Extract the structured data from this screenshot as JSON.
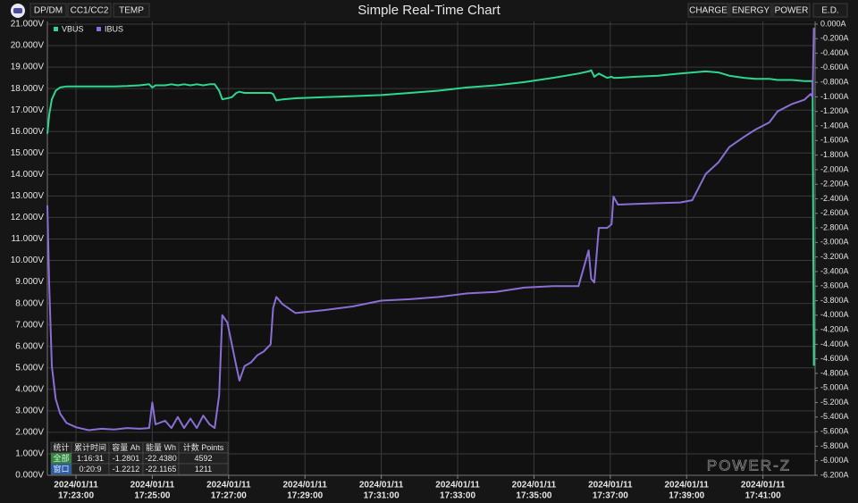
{
  "toolbar": {
    "left": [
      "DP/DM",
      "CC1/CC2",
      "TEMP"
    ],
    "right": [
      "CHARGE",
      "ENERGY",
      "POWER",
      "E.D."
    ]
  },
  "logo": "POWER-Z",
  "stats_table": {
    "header": [
      "统计",
      "累计时间",
      "容量 Ah",
      "能量 Wh",
      "计数 Points"
    ],
    "rows": [
      [
        "全部",
        "1:16:31",
        "-1.2801",
        "-22.4380",
        "4592"
      ],
      [
        "窗口",
        "0:20:9",
        "-1.2212",
        "-22.1165",
        "1211"
      ]
    ]
  },
  "chart_data": {
    "type": "line",
    "title": "Simple Real-Time Chart",
    "grid": true,
    "legend": "top-left",
    "x": [
      "2024/01/11 17:22:15",
      "2024/01/11 17:22:18",
      "2024/01/11 17:22:22",
      "2024/01/11 17:22:28",
      "2024/01/11 17:22:35",
      "2024/01/11 17:22:45",
      "2024/01/11 17:23:00",
      "2024/01/11 17:23:20",
      "2024/01/11 17:23:40",
      "2024/01/11 17:24:00",
      "2024/01/11 17:24:20",
      "2024/01/11 17:24:40",
      "2024/01/11 17:24:55",
      "2024/01/11 17:25:00",
      "2024/01/11 17:25:05",
      "2024/01/11 17:25:20",
      "2024/01/11 17:25:30",
      "2024/01/11 17:25:40",
      "2024/01/11 17:25:50",
      "2024/01/11 17:26:00",
      "2024/01/11 17:26:10",
      "2024/01/11 17:26:20",
      "2024/01/11 17:26:30",
      "2024/01/11 17:26:38",
      "2024/01/11 17:26:45",
      "2024/01/11 17:26:50",
      "2024/01/11 17:26:58",
      "2024/01/11 17:27:05",
      "2024/01/11 17:27:12",
      "2024/01/11 17:27:17",
      "2024/01/11 17:27:25",
      "2024/01/11 17:27:35",
      "2024/01/11 17:27:45",
      "2024/01/11 17:27:55",
      "2024/01/11 17:28:06",
      "2024/01/11 17:28:10",
      "2024/01/11 17:28:15",
      "2024/01/11 17:28:25",
      "2024/01/11 17:28:45",
      "2024/01/11 17:29:30",
      "2024/01/11 17:30:15",
      "2024/01/11 17:31:00",
      "2024/01/11 17:31:45",
      "2024/01/11 17:32:30",
      "2024/01/11 17:33:15",
      "2024/01/11 17:34:00",
      "2024/01/11 17:34:45",
      "2024/01/11 17:35:30",
      "2024/01/11 17:36:10",
      "2024/01/11 17:36:26",
      "2024/01/11 17:36:30",
      "2024/01/11 17:36:35",
      "2024/01/11 17:36:42",
      "2024/01/11 17:36:55",
      "2024/01/11 17:37:02",
      "2024/01/11 17:37:05",
      "2024/01/11 17:37:12",
      "2024/01/11 17:37:40",
      "2024/01/11 17:38:15",
      "2024/01/11 17:38:50",
      "2024/01/11 17:39:09",
      "2024/01/11 17:39:30",
      "2024/01/11 17:39:50",
      "2024/01/11 17:40:07",
      "2024/01/11 17:40:30",
      "2024/01/11 17:40:48",
      "2024/01/11 17:41:10",
      "2024/01/11 17:41:23",
      "2024/01/11 17:41:45",
      "2024/01/11 17:42:05",
      "2024/01/11 17:42:15",
      "2024/01/11 17:42:18",
      "2024/01/11 17:42:20"
    ],
    "series": [
      {
        "name": "VBUS",
        "color": "#2ed68f",
        "values": [
          15.9,
          16.8,
          17.5,
          17.9,
          18.05,
          18.1,
          18.1,
          18.1,
          18.1,
          18.1,
          18.12,
          18.15,
          18.2,
          18.05,
          18.15,
          18.15,
          18.2,
          18.15,
          18.2,
          18.15,
          18.2,
          18.15,
          18.2,
          18.2,
          17.9,
          17.5,
          17.55,
          17.6,
          17.8,
          17.85,
          17.8,
          17.8,
          17.8,
          17.8,
          17.8,
          17.75,
          17.45,
          17.5,
          17.55,
          17.6,
          17.65,
          17.7,
          17.8,
          17.9,
          18.05,
          18.15,
          18.3,
          18.5,
          18.7,
          18.8,
          18.85,
          18.55,
          18.7,
          18.5,
          18.55,
          18.5,
          18.5,
          18.55,
          18.6,
          18.7,
          18.75,
          18.8,
          18.75,
          18.6,
          18.5,
          18.45,
          18.45,
          18.4,
          18.4,
          18.35,
          18.35,
          18.35,
          5.1
        ]
      },
      {
        "name": "IBUS",
        "color": "#8a6fd6",
        "axis": "y2",
        "values": [
          -2.49,
          -3.6,
          -4.7,
          -5.15,
          -5.35,
          -5.48,
          -5.54,
          -5.58,
          -5.56,
          -5.57,
          -5.55,
          -5.56,
          -5.55,
          -5.2,
          -5.5,
          -5.45,
          -5.55,
          -5.4,
          -5.55,
          -5.42,
          -5.55,
          -5.38,
          -5.5,
          -5.55,
          -5.1,
          -4.0,
          -4.1,
          -4.4,
          -4.7,
          -4.9,
          -4.7,
          -4.65,
          -4.55,
          -4.5,
          -4.4,
          -3.9,
          -3.75,
          -3.85,
          -3.97,
          -3.93,
          -3.88,
          -3.8,
          -3.78,
          -3.75,
          -3.7,
          -3.68,
          -3.62,
          -3.6,
          -3.6,
          -3.11,
          -3.5,
          -3.55,
          -2.8,
          -2.8,
          -2.75,
          -2.37,
          -2.48,
          -2.47,
          -2.46,
          -2.45,
          -2.42,
          -2.06,
          -1.9,
          -1.69,
          -1.55,
          -1.45,
          -1.35,
          -1.2,
          -1.1,
          -1.04,
          -0.96,
          -1.0,
          -0.05
        ]
      }
    ],
    "xlim": [
      "2024/01/11 17:22:15",
      "2024/01/11 17:42:22"
    ],
    "xticks": [
      {
        "value": "2024/01/11 17:23:00",
        "label": [
          "2024/01/11",
          "17:23:00"
        ]
      },
      {
        "value": "2024/01/11 17:25:00",
        "label": [
          "2024/01/11",
          "17:25:00"
        ]
      },
      {
        "value": "2024/01/11 17:27:00",
        "label": [
          "2024/01/11",
          "17:27:00"
        ]
      },
      {
        "value": "2024/01/11 17:29:00",
        "label": [
          "2024/01/11",
          "17:29:00"
        ]
      },
      {
        "value": "2024/01/11 17:31:00",
        "label": [
          "2024/01/11",
          "17:31:00"
        ]
      },
      {
        "value": "2024/01/11 17:33:00",
        "label": [
          "2024/01/11",
          "17:33:00"
        ]
      },
      {
        "value": "2024/01/11 17:35:00",
        "label": [
          "2024/01/11",
          "17:35:00"
        ]
      },
      {
        "value": "2024/01/11 17:37:00",
        "label": [
          "2024/01/11",
          "17:37:00"
        ]
      },
      {
        "value": "2024/01/11 17:39:00",
        "label": [
          "2024/01/11",
          "17:39:00"
        ]
      },
      {
        "value": "2024/01/11 17:41:00",
        "label": [
          "2024/01/11",
          "17:41:00"
        ]
      }
    ],
    "ylim": [
      0,
      21
    ],
    "yticks": [
      {
        "value": 0,
        "label": "0.000V"
      },
      {
        "value": 1,
        "label": "1.000V"
      },
      {
        "value": 2,
        "label": "2.000V"
      },
      {
        "value": 3,
        "label": "3.000V"
      },
      {
        "value": 4,
        "label": "4.000V"
      },
      {
        "value": 5,
        "label": "5.000V"
      },
      {
        "value": 6,
        "label": "6.000V"
      },
      {
        "value": 7,
        "label": "7.000V"
      },
      {
        "value": 8,
        "label": "8.000V"
      },
      {
        "value": 9,
        "label": "9.000V"
      },
      {
        "value": 10,
        "label": "10.000V"
      },
      {
        "value": 11,
        "label": "11.000V"
      },
      {
        "value": 12,
        "label": "12.000V"
      },
      {
        "value": 13,
        "label": "13.000V"
      },
      {
        "value": 14,
        "label": "14.000V"
      },
      {
        "value": 15,
        "label": "15.000V"
      },
      {
        "value": 16,
        "label": "16.000V"
      },
      {
        "value": 17,
        "label": "17.000V"
      },
      {
        "value": 18,
        "label": "18.000V"
      },
      {
        "value": 19,
        "label": "19.000V"
      },
      {
        "value": 20,
        "label": "20.000V"
      },
      {
        "value": 21,
        "label": "21.000V"
      }
    ],
    "y2lim": [
      -6.2,
      0
    ],
    "y2ticks": [
      {
        "value": 0,
        "label": "0.000A"
      },
      {
        "value": -0.2,
        "label": "-0.200A"
      },
      {
        "value": -0.4,
        "label": "-0.400A"
      },
      {
        "value": -0.6,
        "label": "-0.600A"
      },
      {
        "value": -0.8,
        "label": "-0.800A"
      },
      {
        "value": -1.0,
        "label": "-1.000A"
      },
      {
        "value": -1.2,
        "label": "-1.200A"
      },
      {
        "value": -1.4,
        "label": "-1.400A"
      },
      {
        "value": -1.6,
        "label": "-1.600A"
      },
      {
        "value": -1.8,
        "label": "-1.800A"
      },
      {
        "value": -2.0,
        "label": "-2.000A"
      },
      {
        "value": -2.2,
        "label": "-2.200A"
      },
      {
        "value": -2.4,
        "label": "-2.400A"
      },
      {
        "value": -2.6,
        "label": "-2.600A"
      },
      {
        "value": -2.8,
        "label": "-2.800A"
      },
      {
        "value": -3.0,
        "label": "-3.000A"
      },
      {
        "value": -3.2,
        "label": "-3.200A"
      },
      {
        "value": -3.4,
        "label": "-3.400A"
      },
      {
        "value": -3.6,
        "label": "-3.600A"
      },
      {
        "value": -3.8,
        "label": "-3.800A"
      },
      {
        "value": -4.0,
        "label": "-4.000A"
      },
      {
        "value": -4.2,
        "label": "-4.200A"
      },
      {
        "value": -4.4,
        "label": "-4.400A"
      },
      {
        "value": -4.6,
        "label": "-4.600A"
      },
      {
        "value": -4.8,
        "label": "-4.800A"
      },
      {
        "value": -5.0,
        "label": "-5.000A"
      },
      {
        "value": -5.2,
        "label": "-5.200A"
      },
      {
        "value": -5.4,
        "label": "-5.400A"
      },
      {
        "value": -5.6,
        "label": "-5.600A"
      },
      {
        "value": -5.8,
        "label": "-5.800A"
      },
      {
        "value": -6.0,
        "label": "-6.000A"
      },
      {
        "value": -6.2,
        "label": "-6.200A"
      }
    ]
  }
}
